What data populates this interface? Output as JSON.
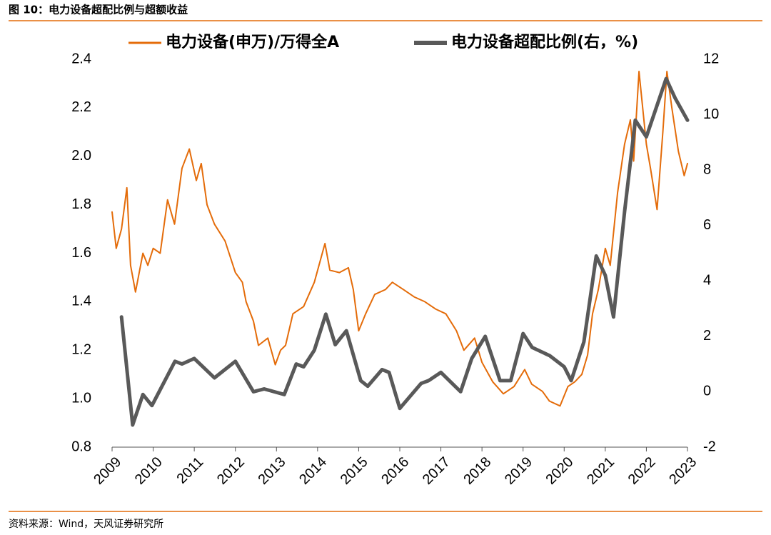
{
  "title": "图 10：电力设备超配比例与超额收益",
  "source": "资料来源：Wind，天风证券研究所",
  "chart_data": {
    "type": "line",
    "xlim": [
      2009,
      2023
    ],
    "xticks": [
      2009,
      2010,
      2011,
      2012,
      2013,
      2014,
      2015,
      2016,
      2017,
      2018,
      2019,
      2020,
      2021,
      2022,
      2023
    ],
    "ylim": [
      0.8,
      2.4
    ],
    "yticks": [
      {
        "value": 0.8,
        "label": "0.8"
      },
      {
        "value": 1,
        "label": "1.0"
      },
      1.2,
      1.4,
      1.6,
      1.8,
      {
        "value": 2,
        "label": "2.0"
      },
      2.2,
      2.4
    ],
    "y2lim": [
      -2,
      12
    ],
    "y2ticks": [
      -2,
      0,
      2,
      4,
      6,
      8,
      10,
      12
    ],
    "grid": false,
    "legend": "top",
    "series": [
      {
        "name": "电力设备(申万)/万得全A",
        "color": "#e46c0a",
        "width": 2,
        "x": [
          2009.0,
          2009.1,
          2009.23,
          2009.36,
          2009.45,
          2009.57,
          2009.75,
          2009.87,
          2010.0,
          2010.17,
          2010.35,
          2010.52,
          2010.7,
          2010.88,
          2011.05,
          2011.17,
          2011.31,
          2011.49,
          2011.75,
          2012.0,
          2012.17,
          2012.26,
          2012.44,
          2012.56,
          2012.79,
          2012.97,
          2013.1,
          2013.22,
          2013.4,
          2013.66,
          2013.92,
          2014.18,
          2014.3,
          2014.53,
          2014.75,
          2014.87,
          2015.0,
          2015.17,
          2015.39,
          2015.65,
          2015.82,
          2016.09,
          2016.35,
          2016.61,
          2016.87,
          2017.12,
          2017.38,
          2017.56,
          2017.82,
          2018.0,
          2018.26,
          2018.52,
          2018.78,
          2019.04,
          2019.21,
          2019.47,
          2019.64,
          2019.9,
          2020.09,
          2020.26,
          2020.43,
          2020.57,
          2020.69,
          2020.83,
          2021.0,
          2021.12,
          2021.3,
          2021.47,
          2021.61,
          2021.69,
          2021.82,
          2022.0,
          2022.1,
          2022.26,
          2022.4,
          2022.5,
          2022.62,
          2022.78,
          2022.92,
          2023.0
        ],
        "values": [
          1.77,
          1.62,
          1.7,
          1.87,
          1.55,
          1.44,
          1.6,
          1.55,
          1.62,
          1.6,
          1.82,
          1.72,
          1.95,
          2.03,
          1.9,
          1.97,
          1.8,
          1.72,
          1.65,
          1.52,
          1.48,
          1.4,
          1.32,
          1.22,
          1.25,
          1.14,
          1.2,
          1.22,
          1.35,
          1.38,
          1.48,
          1.64,
          1.53,
          1.52,
          1.54,
          1.45,
          1.28,
          1.35,
          1.43,
          1.45,
          1.48,
          1.45,
          1.42,
          1.4,
          1.37,
          1.35,
          1.28,
          1.2,
          1.25,
          1.15,
          1.07,
          1.02,
          1.05,
          1.12,
          1.06,
          1.03,
          0.99,
          0.97,
          1.05,
          1.07,
          1.1,
          1.18,
          1.35,
          1.45,
          1.62,
          1.55,
          1.85,
          2.05,
          2.15,
          1.98,
          2.35,
          2.05,
          1.95,
          1.78,
          2.1,
          2.35,
          2.2,
          2.02,
          1.92,
          1.97
        ]
      },
      {
        "name": "电力设备超配比例(右，%)",
        "color": "#595959",
        "width": 5,
        "axis": "y2",
        "x": [
          2009.23,
          2009.5,
          2009.75,
          2009.97,
          2010.53,
          2010.7,
          2011.0,
          2011.49,
          2012.0,
          2012.44,
          2012.7,
          2013.19,
          2013.48,
          2013.66,
          2013.92,
          2014.2,
          2014.43,
          2014.7,
          2015.05,
          2015.22,
          2015.57,
          2015.74,
          2016.0,
          2016.52,
          2016.7,
          2017.0,
          2017.48,
          2017.75,
          2018.08,
          2018.44,
          2018.7,
          2019.0,
          2019.22,
          2019.65,
          2020.0,
          2020.17,
          2020.48,
          2020.78,
          2021.0,
          2021.2,
          2021.47,
          2021.73,
          2022.0,
          2022.48,
          2022.7,
          2023.0
        ],
        "values": [
          2.7,
          -1.2,
          -0.1,
          -0.5,
          1.1,
          1.0,
          1.2,
          0.5,
          1.1,
          0.0,
          0.1,
          -0.1,
          1.0,
          0.9,
          1.5,
          2.8,
          1.7,
          2.2,
          0.4,
          0.2,
          0.8,
          0.7,
          -0.6,
          0.3,
          0.4,
          0.7,
          0.0,
          1.2,
          2.0,
          0.4,
          0.4,
          2.1,
          1.6,
          1.3,
          0.9,
          0.4,
          1.8,
          4.9,
          4.2,
          2.7,
          6.5,
          9.8,
          9.2,
          11.3,
          10.6,
          9.8
        ]
      }
    ]
  }
}
